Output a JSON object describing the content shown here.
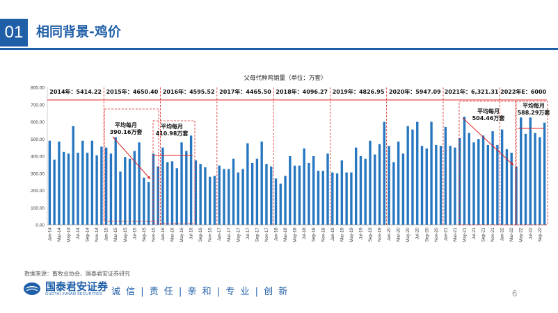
{
  "header": {
    "number": "01",
    "title": "相同背景-鸡价"
  },
  "source": "数据来源：畜牧业协会、国泰君安证券研究",
  "footer": {
    "company_cn": "国泰君安证券",
    "company_en": "GUOTAI JUNAN SECURITIES",
    "slogan": "诚 信 | 责 任 | 亲 和 | 专 业 | 创 新",
    "page": "6"
  },
  "colors": {
    "brand": "#1f5fa8",
    "bar": "#2677c0",
    "annotation": "#e02020"
  },
  "chart_data": {
    "type": "bar",
    "title": "父母代种鸡销量（单位：万套）",
    "ylim": [
      0,
      800
    ],
    "yticks": [
      "0.00",
      "100.00",
      "200.00",
      "300.00",
      "400.00",
      "500.00",
      "600.00",
      "700.00",
      "800.00"
    ],
    "grid": false,
    "start": "2014-01",
    "xtick_labels": [
      "Jan-14",
      "Mar-14",
      "May-14",
      "Jul-14",
      "Sep-14",
      "Nov-14",
      "Jan-15",
      "Mar-15",
      "May-15",
      "Jul-15",
      "Sep-15",
      "Nov-15",
      "Jan-16",
      "Mar-16",
      "May-16",
      "Jul-16",
      "Sep-16",
      "Nov-16",
      "Jan-17",
      "Mar-17",
      "May-17",
      "Jul-17",
      "Sep-17",
      "Nov-17",
      "Jan-18",
      "Mar-18",
      "May-18",
      "Jul-18",
      "Sep-18",
      "Nov-18",
      "Jan-19",
      "Mar-19",
      "May-19",
      "Jul-19",
      "Sep-19",
      "Nov-19",
      "Jan-20",
      "Mar-20",
      "May-20",
      "Jul-20",
      "Sep-20",
      "Nov-20",
      "Jan-21",
      "Mar-21",
      "May-21",
      "Jul-21",
      "Sep-21",
      "Nov-21",
      "Jan-22",
      "Mar-22",
      "May-22",
      "Jul-22",
      "Sep-22"
    ],
    "values": [
      490,
      380,
      485,
      425,
      415,
      575,
      420,
      490,
      420,
      490,
      405,
      455,
      450,
      415,
      510,
      310,
      395,
      385,
      430,
      480,
      275,
      250,
      415,
      340,
      450,
      365,
      370,
      330,
      480,
      430,
      520,
      375,
      355,
      335,
      280,
      285,
      345,
      325,
      325,
      385,
      305,
      325,
      475,
      360,
      385,
      485,
      355,
      340,
      270,
      240,
      285,
      400,
      345,
      345,
      445,
      360,
      400,
      315,
      315,
      415,
      305,
      300,
      375,
      305,
      305,
      450,
      400,
      385,
      490,
      410,
      470,
      600,
      460,
      365,
      485,
      415,
      575,
      555,
      600,
      460,
      445,
      600,
      465,
      460,
      570,
      460,
      450,
      505,
      630,
      535,
      480,
      500,
      520,
      465,
      545,
      465,
      555,
      440,
      420,
      340,
      625,
      530,
      625,
      535,
      510,
      595
    ],
    "year_labels": [
      "2014年：5414.22",
      "2015年：4650.40",
      "2016年：4595.52",
      "2017年：4465.50",
      "2018年：4096.27",
      "2019年：4826.95",
      "2020年：5947.09",
      "2021年：6,321.31",
      "2022年E：6000"
    ],
    "annotations": [
      {
        "text": [
          "平均每月",
          "390.16万套"
        ]
      },
      {
        "text": [
          "平均每月",
          "410.98万套"
        ]
      },
      {
        "text": [
          "平均每月",
          "504.46万套"
        ]
      },
      {
        "text": [
          "平均每月",
          "588.29万套"
        ]
      }
    ]
  }
}
